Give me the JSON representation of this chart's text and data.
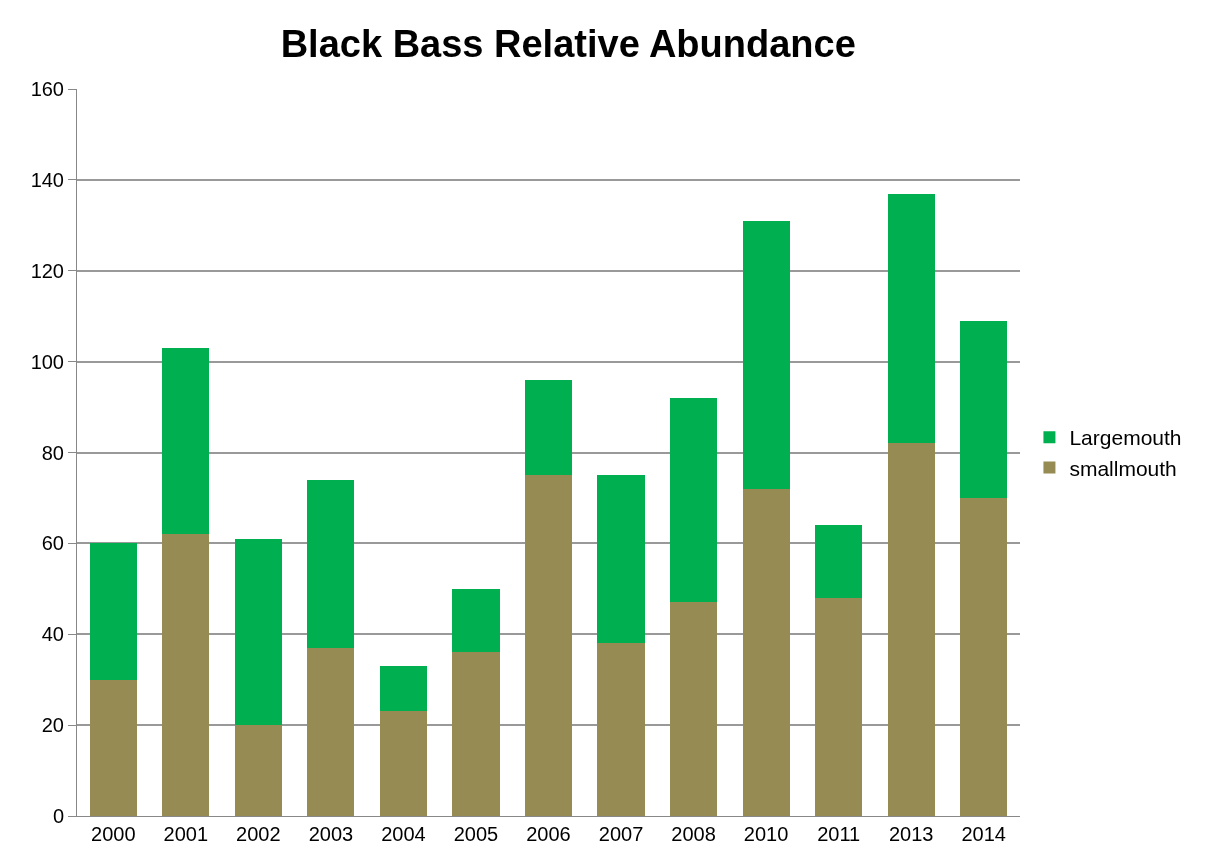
{
  "chart_data": {
    "type": "bar",
    "title": "Black Bass Relative Abundance",
    "stacked": true,
    "categories": [
      "2000",
      "2001",
      "2002",
      "2003",
      "2004",
      "2005",
      "2006",
      "2007",
      "2008",
      "2010",
      "2011",
      "2013",
      "2014"
    ],
    "series": [
      {
        "name": "smallmouth",
        "color": "#958b53",
        "values": [
          30,
          62,
          20,
          37,
          23,
          36,
          75,
          38,
          47,
          72,
          48,
          82,
          70
        ]
      },
      {
        "name": "Largemouth",
        "color": "#00b050",
        "values": [
          30,
          41,
          41,
          37,
          10,
          14,
          21,
          37,
          45,
          59,
          16,
          55,
          39
        ]
      }
    ],
    "ylim": [
      0,
      160
    ],
    "yticks": [
      0,
      20,
      40,
      60,
      80,
      100,
      120,
      140,
      160
    ],
    "grid": "y",
    "legend": "right"
  }
}
